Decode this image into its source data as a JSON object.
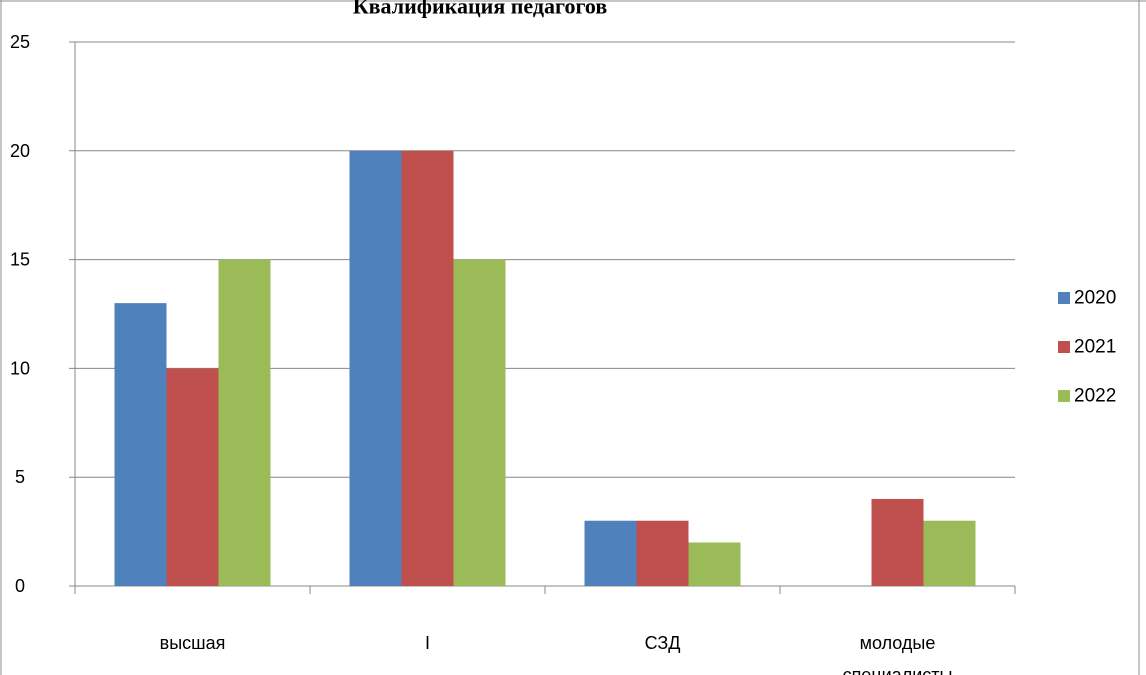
{
  "chart_data": {
    "type": "bar",
    "title": "Квалификация педагогов",
    "categories": [
      [
        "высшая"
      ],
      [
        "I"
      ],
      [
        "СЗД"
      ],
      [
        "молодые",
        "специалисты"
      ]
    ],
    "series": [
      {
        "name": "2020",
        "color": "#4F81BD",
        "values": [
          13,
          20,
          3,
          0
        ]
      },
      {
        "name": "2021",
        "color": "#C0504D",
        "values": [
          10,
          20,
          3,
          4
        ]
      },
      {
        "name": "2022",
        "color": "#9BBB59",
        "values": [
          15,
          15,
          2,
          3
        ]
      }
    ],
    "ylim": [
      0,
      25
    ],
    "yticks": [
      0,
      5,
      10,
      15,
      20,
      25
    ],
    "grid": true,
    "legend": "right"
  }
}
